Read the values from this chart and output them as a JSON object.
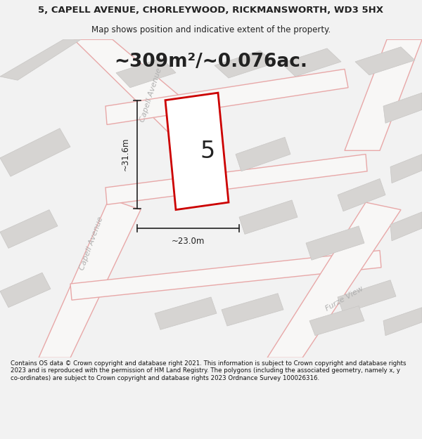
{
  "title_line1": "5, CAPELL AVENUE, CHORLEYWOOD, RICKMANSWORTH, WD3 5HX",
  "title_line2": "Map shows position and indicative extent of the property.",
  "area_text": "~309m²/~0.076ac.",
  "number_label": "5",
  "dim_vertical": "~31.6m",
  "dim_horizontal": "~23.0m",
  "road_label_upper": "Capell Avenue",
  "road_label_lower": "Capell Avenue",
  "road_label_furze": "Furze View",
  "footer_text": "Contains OS data © Crown copyright and database right 2021. This information is subject to Crown copyright and database rights 2023 and is reproduced with the permission of HM Land Registry. The polygons (including the associated geometry, namely x, y co-ordinates) are subject to Crown copyright and database rights 2023 Ordnance Survey 100026316.",
  "bg_color": "#f2f2f2",
  "map_bg": "#eeeceb",
  "building_color": "#d6d4d2",
  "building_edge": "#c8c6c4",
  "road_fill": "#f8f7f6",
  "road_edge": "#e8a8a8",
  "highlight_color": "#cc0000",
  "highlight_fill": "#ffffff",
  "dim_color": "#222222",
  "text_color": "#222222",
  "road_text_color": "#b0b0b0",
  "footer_color": "#111111",
  "title_fontsize": 9.5,
  "subtitle_fontsize": 8.5,
  "area_fontsize": 19,
  "label_fontsize": 8,
  "dim_fontsize": 8.5,
  "footer_fontsize": 6.2,
  "plot_number_fontsize": 24
}
